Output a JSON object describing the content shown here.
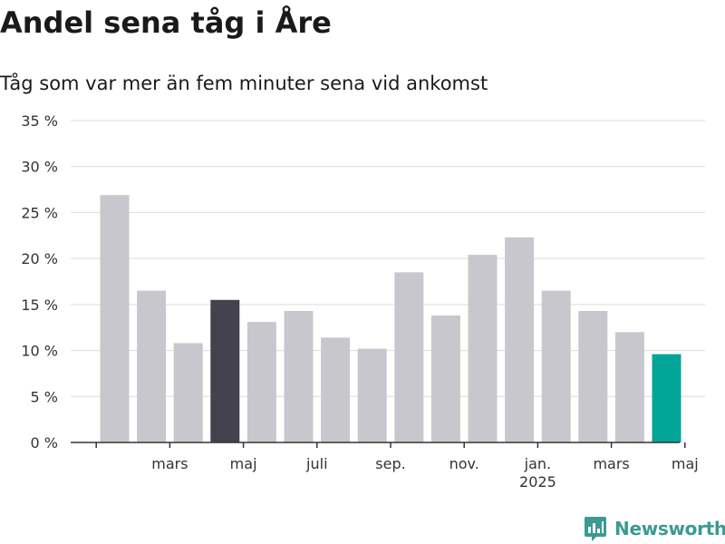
{
  "title": "Andel sena tåg i Åre",
  "subtitle": "Tåg som var mer än fem minuter sena vid ankomst",
  "brand": "Newsworthy",
  "colors": {
    "bar_default": "#c8c7cd",
    "bar_highlight_dark": "#43424d",
    "bar_highlight_latest": "#00a598",
    "grid": "#dcdcdc",
    "axis": "#333333",
    "brand": "#3b9a92"
  },
  "chart_data": {
    "type": "bar",
    "values": [
      26.9,
      16.5,
      10.8,
      15.5,
      13.1,
      14.3,
      11.4,
      10.2,
      18.5,
      13.8,
      20.4,
      22.3,
      16.5,
      14.3,
      12.0,
      9.6
    ],
    "highlight": {
      "3": "dark",
      "15": "latest"
    },
    "ylim": [
      0,
      35
    ],
    "yticks": [
      {
        "value": 0,
        "label": "0 %"
      },
      {
        "value": 5,
        "label": "5 %"
      },
      {
        "value": 10,
        "label": "10 %"
      },
      {
        "value": 15,
        "label": "15 %"
      },
      {
        "value": 20,
        "label": "20 %"
      },
      {
        "value": 25,
        "label": "25 %"
      },
      {
        "value": 30,
        "label": "30 %"
      },
      {
        "value": 35,
        "label": "35 %"
      }
    ],
    "xticks": [
      {
        "pos": -0.5,
        "label": ""
      },
      {
        "pos": 1.5,
        "label": "mars"
      },
      {
        "pos": 3.5,
        "label": "maj"
      },
      {
        "pos": 5.5,
        "label": "juli"
      },
      {
        "pos": 7.5,
        "label": "sep."
      },
      {
        "pos": 9.5,
        "label": "nov."
      },
      {
        "pos": 11.5,
        "label": "jan.",
        "sublabel": "2025"
      },
      {
        "pos": 13.5,
        "label": "mars"
      },
      {
        "pos": 15.5,
        "label": "maj"
      }
    ],
    "grid": true
  }
}
